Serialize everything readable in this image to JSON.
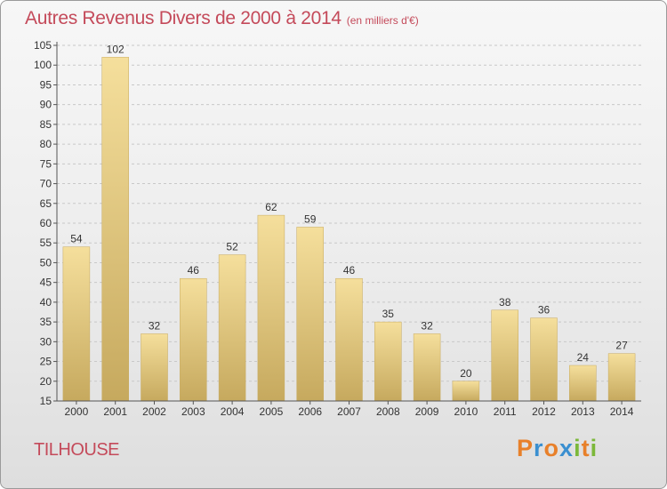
{
  "header": {
    "title": "Autres Revenus Divers de 2000 à 2014",
    "unit_note": "(en milliers d'€)"
  },
  "footer": {
    "commune": "TILHOUSE",
    "logo": [
      "P",
      "r",
      "o",
      "x",
      "i",
      "t",
      "i"
    ]
  },
  "colors": {
    "title": "#c44a5a",
    "bar_light": "#f5df9c",
    "bar_dark": "#c6a95e",
    "logo": [
      "#e8802a",
      "#3a8fd0",
      "#e8802a",
      "#3a8fd0",
      "#7cb83a",
      "#e8802a",
      "#7cb83a"
    ]
  },
  "chart_data": {
    "type": "bar",
    "categories": [
      "2000",
      "2001",
      "2002",
      "2003",
      "2004",
      "2005",
      "2006",
      "2007",
      "2008",
      "2009",
      "2010",
      "2011",
      "2012",
      "2013",
      "2014"
    ],
    "values": [
      54,
      102,
      32,
      46,
      52,
      62,
      59,
      46,
      35,
      32,
      20,
      38,
      36,
      24,
      27
    ],
    "data_labels": [
      "54",
      "102",
      "32",
      "46",
      "52",
      "62",
      "59",
      "46",
      "35",
      "32",
      "20",
      "38",
      "36",
      "24",
      "27"
    ],
    "y_ticks": [
      15,
      20,
      25,
      30,
      35,
      40,
      45,
      50,
      55,
      60,
      65,
      70,
      75,
      80,
      85,
      90,
      95,
      100,
      105
    ],
    "ylim": [
      15,
      105
    ],
    "grid": "horizontal-dashed",
    "legend": "none"
  }
}
